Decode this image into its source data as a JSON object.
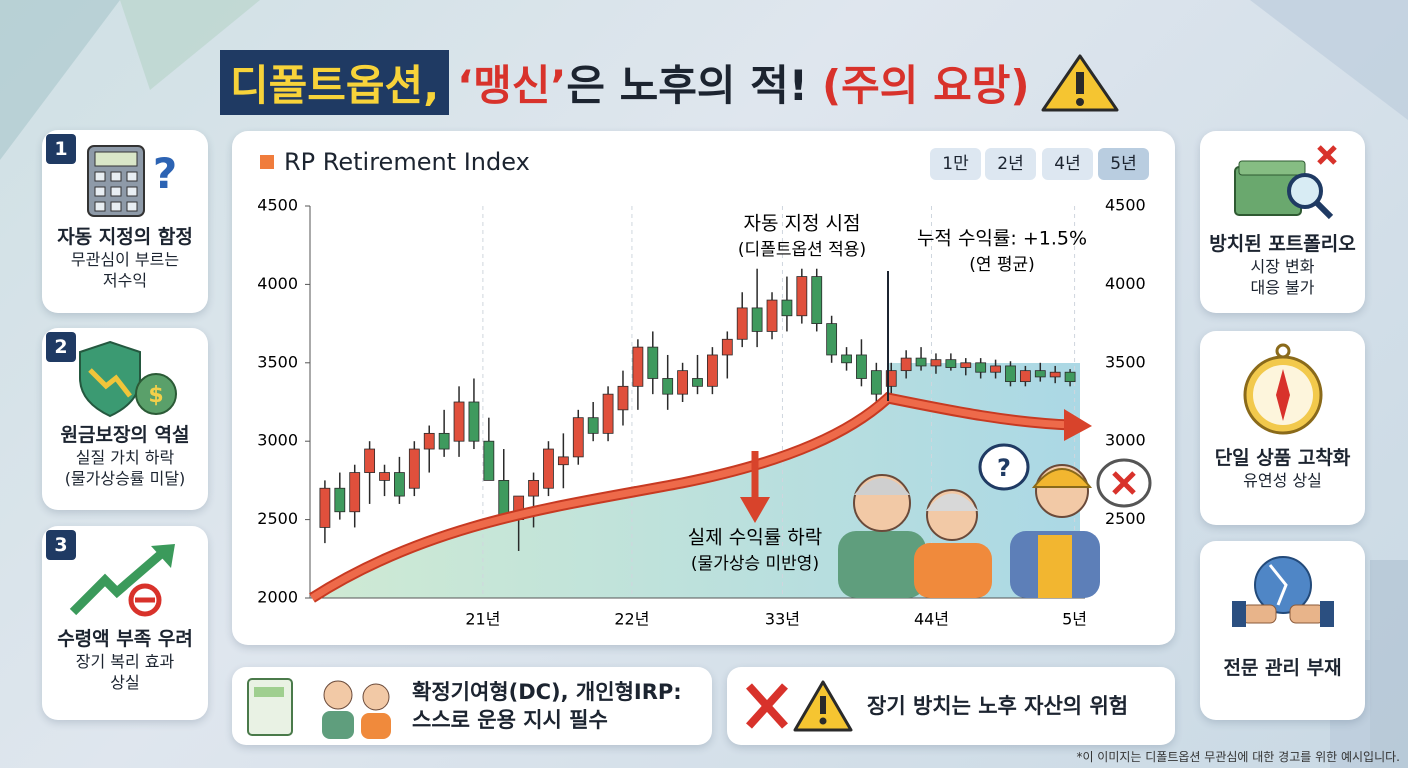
{
  "header": {
    "title_highlight": "디폴트옵션,",
    "title_quote": "‘맹신’",
    "title_rest": "은 노후의 적!",
    "title_warning": "(주의 요망)"
  },
  "left_cards": [
    {
      "number": "1",
      "title": "자동 지정의 함정",
      "lines": [
        "무관심이 부르는",
        "저수익"
      ]
    },
    {
      "number": "2",
      "title": "원금보장의 역설",
      "lines": [
        "실질 가치 하락",
        "(물가상승률 미달)"
      ]
    },
    {
      "number": "3",
      "title": "수령액 부족 우려",
      "lines": [
        "장기 복리 효과",
        "상실"
      ]
    }
  ],
  "right_cards": [
    {
      "title": "방치된 포트폴리오",
      "lines": [
        "시장 변화",
        "대응 불가"
      ]
    },
    {
      "title": "단일 상품 고착화",
      "lines": [
        "유연성 상실"
      ]
    },
    {
      "title": "전문 관리 부재",
      "lines": []
    }
  ],
  "bottom_boxes": [
    {
      "lines": [
        "확정기여형(DC), 개인형IRP:",
        "스스로 운용 지시 필수"
      ]
    },
    {
      "lines": [
        "장기 방치는 노후 자산의 위험"
      ]
    }
  ],
  "footnote": "*이 이미지는 디폴트옵션 무관심에 대한 경고를 위한 예시입니다.",
  "chart_data": {
    "type": "candlestick",
    "title": "RP Retirement Index",
    "buttons": [
      "1만",
      "2년",
      "4년",
      "5년"
    ],
    "annotations": [
      "자동 지정 시점",
      "(디폴트옵션 적용)",
      "누적 수익률: +1.5%",
      "(연 평균)",
      "실제 수익률 하락",
      "(물가상승 미반영)"
    ],
    "x": [
      1,
      2,
      3,
      4,
      5,
      6,
      7,
      8,
      9,
      10,
      11,
      12,
      13,
      14,
      15,
      16,
      17,
      18,
      19,
      20,
      21,
      22,
      23,
      24,
      25,
      26,
      27,
      28,
      29,
      30,
      31,
      32,
      33,
      34,
      35,
      36,
      37,
      38,
      39,
      40,
      41,
      42,
      43,
      44,
      45,
      46,
      47,
      48,
      49,
      50,
      51
    ],
    "open": [
      2450,
      2700,
      2550,
      2800,
      2750,
      2800,
      2700,
      2950,
      3050,
      3000,
      3250,
      3000,
      2750,
      2500,
      2650,
      2700,
      2850,
      2900,
      3150,
      3050,
      3200,
      3350,
      3600,
      3400,
      3300,
      3400,
      3350,
      3550,
      3650,
      3850,
      3700,
      3900,
      3800,
      4050,
      3750,
      3550,
      3550,
      3450,
      3350,
      3450,
      3530,
      3480,
      3520,
      3470,
      3500,
      3440,
      3480,
      3380,
      3450,
      3410,
      3440
    ],
    "high": [
      2750,
      2800,
      2850,
      3000,
      2850,
      2900,
      3000,
      3100,
      3200,
      3350,
      3400,
      3150,
      2950,
      2650,
      2800,
      3000,
      3050,
      3200,
      3250,
      3350,
      3450,
      3650,
      3700,
      3550,
      3500,
      3550,
      3600,
      3700,
      3950,
      4100,
      3950,
      4050,
      4100,
      4100,
      3800,
      3600,
      3650,
      3500,
      3500,
      3580,
      3600,
      3560,
      3560,
      3530,
      3530,
      3520,
      3510,
      3480,
      3500,
      3480,
      3460
    ],
    "low": [
      2350,
      2500,
      2450,
      2600,
      2650,
      2600,
      2650,
      2800,
      2900,
      2900,
      2950,
      2750,
      2500,
      2300,
      2450,
      2650,
      2700,
      2850,
      3000,
      3000,
      3100,
      3200,
      3300,
      3200,
      3250,
      3300,
      3300,
      3400,
      3600,
      3600,
      3650,
      3700,
      3750,
      3700,
      3500,
      3450,
      3350,
      3250,
      3300,
      3400,
      3450,
      3430,
      3450,
      3420,
      3400,
      3400,
      3350,
      3350,
      3380,
      3370,
      3350
    ],
    "close": [
      2700,
      2550,
      2800,
      2950,
      2800,
      2650,
      2950,
      3050,
      2950,
      3250,
      3000,
      2750,
      2500,
      2650,
      2750,
      2950,
      2900,
      3150,
      3050,
      3300,
      3350,
      3600,
      3400,
      3300,
      3450,
      3350,
      3550,
      3650,
      3850,
      3700,
      3900,
      3800,
      4050,
      3750,
      3550,
      3500,
      3400,
      3300,
      3450,
      3530,
      3480,
      3520,
      3470,
      3500,
      3440,
      3480,
      3380,
      3450,
      3410,
      3440,
      3380
    ],
    "up_color": "#e0503c",
    "down_color": "#3f9a5e",
    "xlim": [
      0,
      52
    ],
    "xticks": [
      {
        "value": 11.6,
        "label": "21년"
      },
      {
        "value": 21.6,
        "label": "22년"
      },
      {
        "value": 31.7,
        "label": "33년"
      },
      {
        "value": 41.7,
        "label": "44년"
      },
      {
        "value": 51.3,
        "label": "5년"
      }
    ],
    "ylim": [
      2000,
      4500
    ],
    "yticks": [
      2000,
      2500,
      3000,
      3500,
      4000,
      4500
    ],
    "y2lim": [
      2000,
      4500
    ],
    "y2ticks": [
      2500,
      3000,
      3500,
      4000,
      4500
    ],
    "grid": true
  }
}
